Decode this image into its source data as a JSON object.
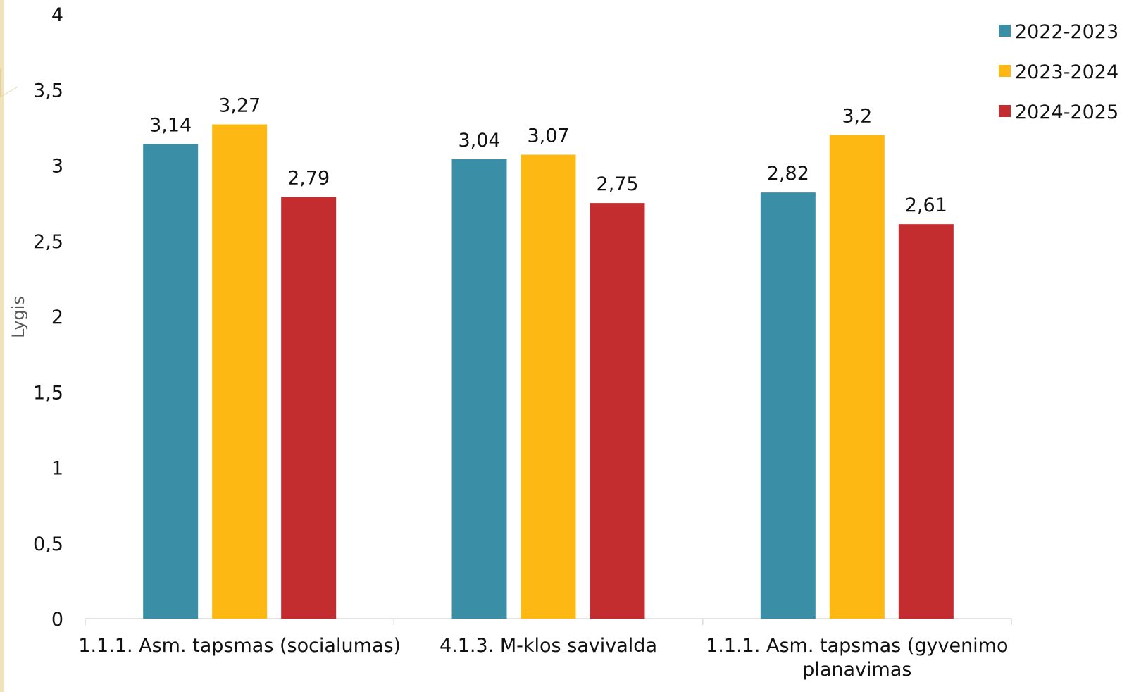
{
  "chart_data": {
    "type": "bar",
    "categories": [
      "1.1.1. Asm. tapsmas (socialumas)",
      "4.1.3. M-klos savivalda",
      "1.1.1. Asm. tapsmas (gyvenimo planavimas"
    ],
    "category_lines": [
      [
        "1.1.1. Asm. tapsmas (socialumas)"
      ],
      [
        "4.1.3. M-klos savivalda"
      ],
      [
        "1.1.1. Asm. tapsmas (gyvenimo",
        "planavimas"
      ]
    ],
    "series": [
      {
        "name": "2022-2023",
        "values": [
          3.14,
          3.04,
          2.82
        ],
        "labels": [
          "3,14",
          "3,04",
          "2,82"
        ]
      },
      {
        "name": "2023-2024",
        "values": [
          3.27,
          3.07,
          3.2
        ],
        "labels": [
          "3,27",
          "3,07",
          "3,2"
        ]
      },
      {
        "name": "2024-2025",
        "values": [
          2.79,
          2.75,
          2.61
        ],
        "labels": [
          "2,79",
          "2,75",
          "2,61"
        ]
      }
    ],
    "ylabel": "Lygis",
    "ylim": [
      0,
      4
    ],
    "y_ticks": [
      {
        "value": 0,
        "label": "0"
      },
      {
        "value": 0.5,
        "label": "0,5"
      },
      {
        "value": 1,
        "label": "1"
      },
      {
        "value": 1.5,
        "label": "1,5"
      },
      {
        "value": 2,
        "label": "2"
      },
      {
        "value": 2.5,
        "label": "2,5"
      },
      {
        "value": 3,
        "label": "3"
      },
      {
        "value": 3.5,
        "label": "3,5"
      },
      {
        "value": 4,
        "label": "4"
      }
    ],
    "grid": false,
    "legend_position": "top-right",
    "colors": [
      "#3a8fa7",
      "#fdb813",
      "#c42d30"
    ]
  }
}
